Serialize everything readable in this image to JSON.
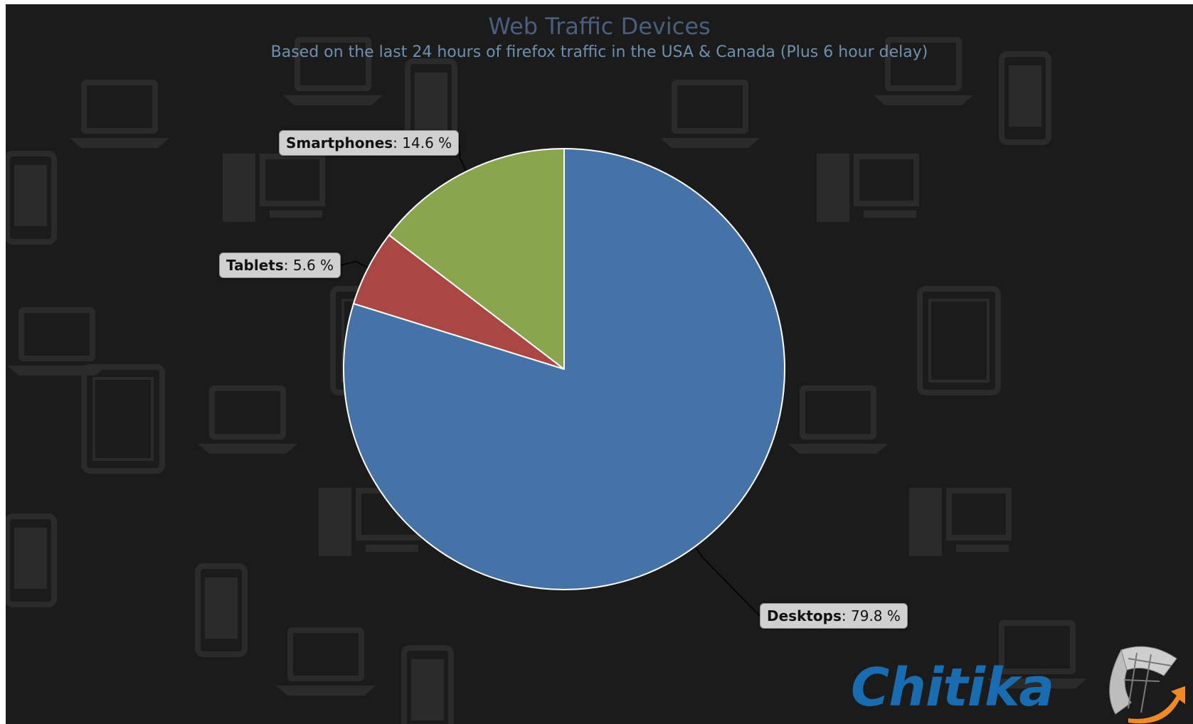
{
  "chart_data": {
    "type": "pie",
    "title": "Web Traffic Devices",
    "subtitle": "Based on the last 24 hours of firefox traffic in the USA & Canada (Plus 6 hour delay)",
    "legend": "none",
    "slices": [
      {
        "name": "Desktops",
        "value": 79.8,
        "color": "#4572a7",
        "label_text": ": 79.8 %"
      },
      {
        "name": "Tablets",
        "value": 5.6,
        "color": "#aa4643",
        "label_text": ": 5.6 %"
      },
      {
        "name": "Smartphones",
        "value": 14.6,
        "color": "#89a54e",
        "label_text": ": 14.6 %"
      }
    ]
  },
  "logo": {
    "text": "Chitika"
  },
  "colors": {
    "background": "#1b1b1b",
    "title": "#4a5f80",
    "subtitle": "#6f8fb0",
    "label_bg": "#d0d0d0"
  }
}
